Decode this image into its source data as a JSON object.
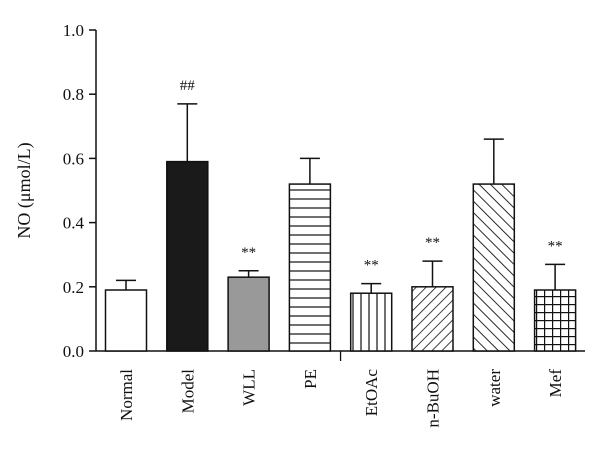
{
  "chart_data": {
    "type": "bar",
    "title": "",
    "xlabel": "",
    "ylabel": "NO (μmol/L)",
    "ylim": [
      0,
      1.0
    ],
    "yticks": [
      "0.0",
      "0.2",
      "0.4",
      "0.6",
      "0.8",
      "1.0"
    ],
    "ytick_values": [
      0,
      0.2,
      0.4,
      0.6,
      0.8,
      1.0
    ],
    "grid": false,
    "legend": "none",
    "categories": [
      "Normal",
      "Model",
      "WLL",
      "PE",
      "EtOAc",
      "n-BuOH",
      "water",
      "Mef"
    ],
    "values": [
      0.19,
      0.59,
      0.23,
      0.52,
      0.18,
      0.2,
      0.52,
      0.19
    ],
    "errors": [
      0.03,
      0.18,
      0.02,
      0.08,
      0.03,
      0.08,
      0.14,
      0.08
    ],
    "significance": [
      "",
      "##",
      "**",
      "",
      "**",
      "**",
      "",
      "**"
    ],
    "fills": [
      "white",
      "black",
      "gray",
      "horizontal-lines",
      "vertical-lines",
      "diagonal-forward",
      "diagonal-back",
      "grid"
    ],
    "colors": {
      "black": "#1a1a1a",
      "gray": "#999999",
      "stroke": "#111111",
      "white": "#ffffff"
    }
  }
}
